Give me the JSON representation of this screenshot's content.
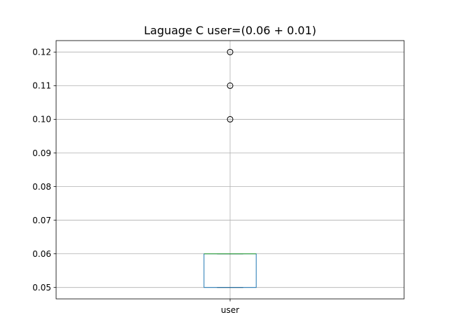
{
  "chart_data": {
    "type": "box",
    "title": "Laguage C user=(0.06 + 0.01)",
    "xlabel": "",
    "ylabel": "",
    "categories": [
      "user"
    ],
    "ylim": [
      0.0466,
      0.1234
    ],
    "yticks": [
      0.05,
      0.06,
      0.07,
      0.08,
      0.09,
      0.1,
      0.11,
      0.12
    ],
    "ytick_labels": [
      "0.05",
      "0.06",
      "0.07",
      "0.08",
      "0.09",
      "0.10",
      "0.11",
      "0.12"
    ],
    "grid": true,
    "boxes": [
      {
        "name": "user",
        "q1": 0.05,
        "median": 0.06,
        "q3": 0.06,
        "whisker_low": 0.05,
        "whisker_high": 0.06,
        "outliers": [
          0.1,
          0.11,
          0.12
        ]
      }
    ],
    "colors": {
      "box": "#1f77b4",
      "median": "#2ca02c",
      "whisker": "#000000",
      "grid": "#b0b0b0",
      "axes": "#000000"
    }
  }
}
